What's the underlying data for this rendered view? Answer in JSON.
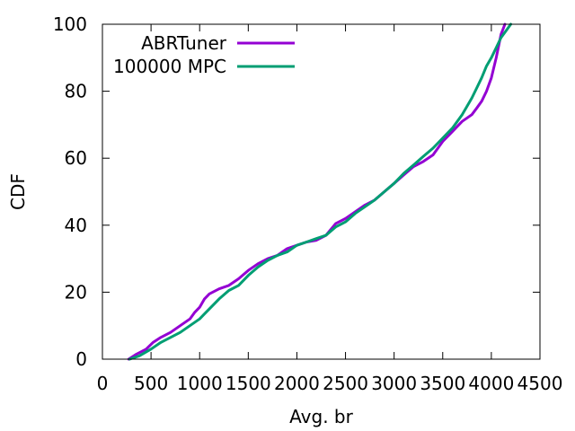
{
  "chart_data": {
    "type": "line",
    "title": "",
    "xlabel": "Avg. br",
    "ylabel": "CDF",
    "xlim": [
      0,
      4500
    ],
    "ylim": [
      0,
      100
    ],
    "xticks": [
      0,
      500,
      1000,
      1500,
      2000,
      2500,
      3000,
      3500,
      4000,
      4500
    ],
    "yticks": [
      0,
      20,
      40,
      60,
      80,
      100
    ],
    "grid": false,
    "legend_position": "top-left",
    "series": [
      {
        "name": "ABRTuner",
        "color": "#9400d3",
        "x": [
          270,
          350,
          450,
          520,
          600,
          700,
          800,
          900,
          950,
          1000,
          1050,
          1100,
          1200,
          1300,
          1400,
          1500,
          1600,
          1700,
          1800,
          1900,
          2000,
          2100,
          2200,
          2300,
          2400,
          2500,
          2600,
          2700,
          2800,
          2900,
          3000,
          3100,
          3200,
          3300,
          3400,
          3500,
          3600,
          3700,
          3800,
          3850,
          3900,
          3950,
          4000,
          4050,
          4100,
          4140
        ],
        "y": [
          0,
          1.5,
          3,
          5,
          6.5,
          8,
          10,
          12,
          14,
          15.5,
          18,
          19.5,
          21,
          22,
          24,
          26.5,
          28.5,
          30,
          31,
          33,
          34,
          35,
          35.5,
          37,
          40.5,
          42,
          44,
          46,
          47.5,
          50,
          52.5,
          55,
          57.5,
          59,
          61,
          65,
          68,
          71,
          73,
          75,
          77,
          80,
          84,
          90,
          97,
          100
        ]
      },
      {
        "name": "100000 MPC",
        "color": "#009e73",
        "x": [
          280,
          380,
          500,
          600,
          700,
          800,
          900,
          1000,
          1050,
          1100,
          1200,
          1300,
          1400,
          1500,
          1600,
          1700,
          1800,
          1900,
          2000,
          2100,
          2200,
          2300,
          2400,
          2500,
          2600,
          2700,
          2800,
          2900,
          3000,
          3100,
          3200,
          3300,
          3400,
          3500,
          3600,
          3700,
          3800,
          3850,
          3900,
          3950,
          4000,
          4050,
          4100,
          4150,
          4200
        ],
        "y": [
          0,
          1,
          3,
          5,
          6.5,
          8,
          10,
          12,
          13.5,
          15,
          18,
          20.5,
          22,
          25,
          27.5,
          29.5,
          31,
          32,
          34,
          35,
          36,
          37,
          39.5,
          41,
          43.5,
          45.5,
          47.5,
          50,
          52.5,
          55.5,
          58,
          60.5,
          63,
          66,
          69,
          73,
          78,
          81,
          84,
          87.5,
          90,
          93,
          96,
          98,
          100
        ]
      }
    ]
  }
}
